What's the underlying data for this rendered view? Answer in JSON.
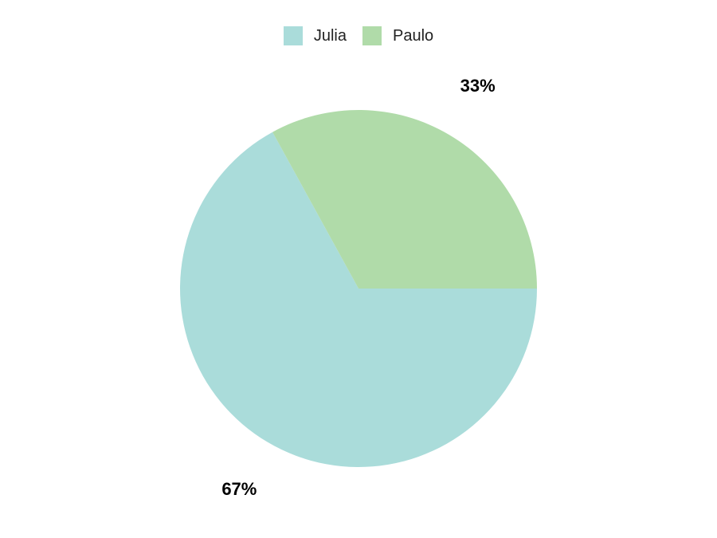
{
  "legend": {
    "placement": "top-center",
    "items": [
      {
        "label": "Julia",
        "color": "#aadcda"
      },
      {
        "label": "Paulo",
        "color": "#b0dba9"
      }
    ]
  },
  "chart_data": {
    "type": "pie",
    "title": "",
    "categories": [
      "Julia",
      "Paulo"
    ],
    "values": [
      67,
      33
    ],
    "labels": [
      "67%",
      "33%"
    ],
    "colors": [
      "#aadcda",
      "#b0dba9"
    ]
  }
}
